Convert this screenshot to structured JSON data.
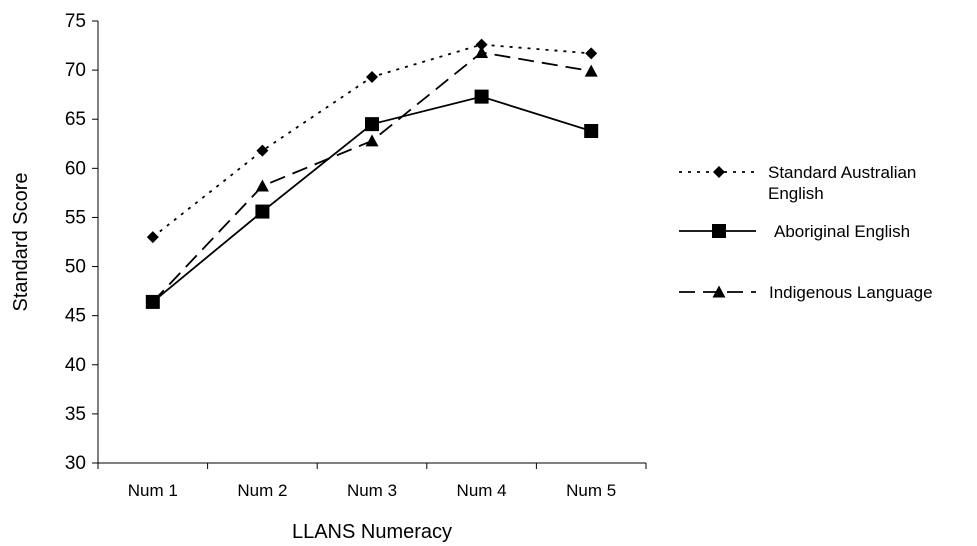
{
  "chart_data": {
    "type": "line",
    "title": "",
    "xlabel": "LLANS Numeracy",
    "ylabel": "Standard Score",
    "categories": [
      "Num 1",
      "Num 2",
      "Num 3",
      "Num 4",
      "Num 5"
    ],
    "ylim": [
      30,
      75
    ],
    "yticks": [
      30,
      35,
      40,
      45,
      50,
      55,
      60,
      65,
      70,
      75
    ],
    "grid": false,
    "legend_position": "right",
    "series": [
      {
        "name": "Standard Australian English",
        "name_lines": [
          "Standard Australian",
          "English"
        ],
        "values": [
          53.0,
          61.8,
          69.3,
          72.6,
          71.7
        ],
        "marker": "diamond",
        "line_style": "dotted",
        "color": "#000000"
      },
      {
        "name": "Aboriginal English",
        "name_lines": [
          "Aboriginal English"
        ],
        "values": [
          46.4,
          55.6,
          64.5,
          67.3,
          63.8
        ],
        "marker": "square",
        "line_style": "solid",
        "color": "#000000"
      },
      {
        "name": "Indigenous Language",
        "name_lines": [
          "Indigenous Language"
        ],
        "values": [
          46.4,
          58.2,
          62.8,
          71.8,
          69.9
        ],
        "marker": "triangle",
        "line_style": "dashed",
        "color": "#000000"
      }
    ]
  }
}
